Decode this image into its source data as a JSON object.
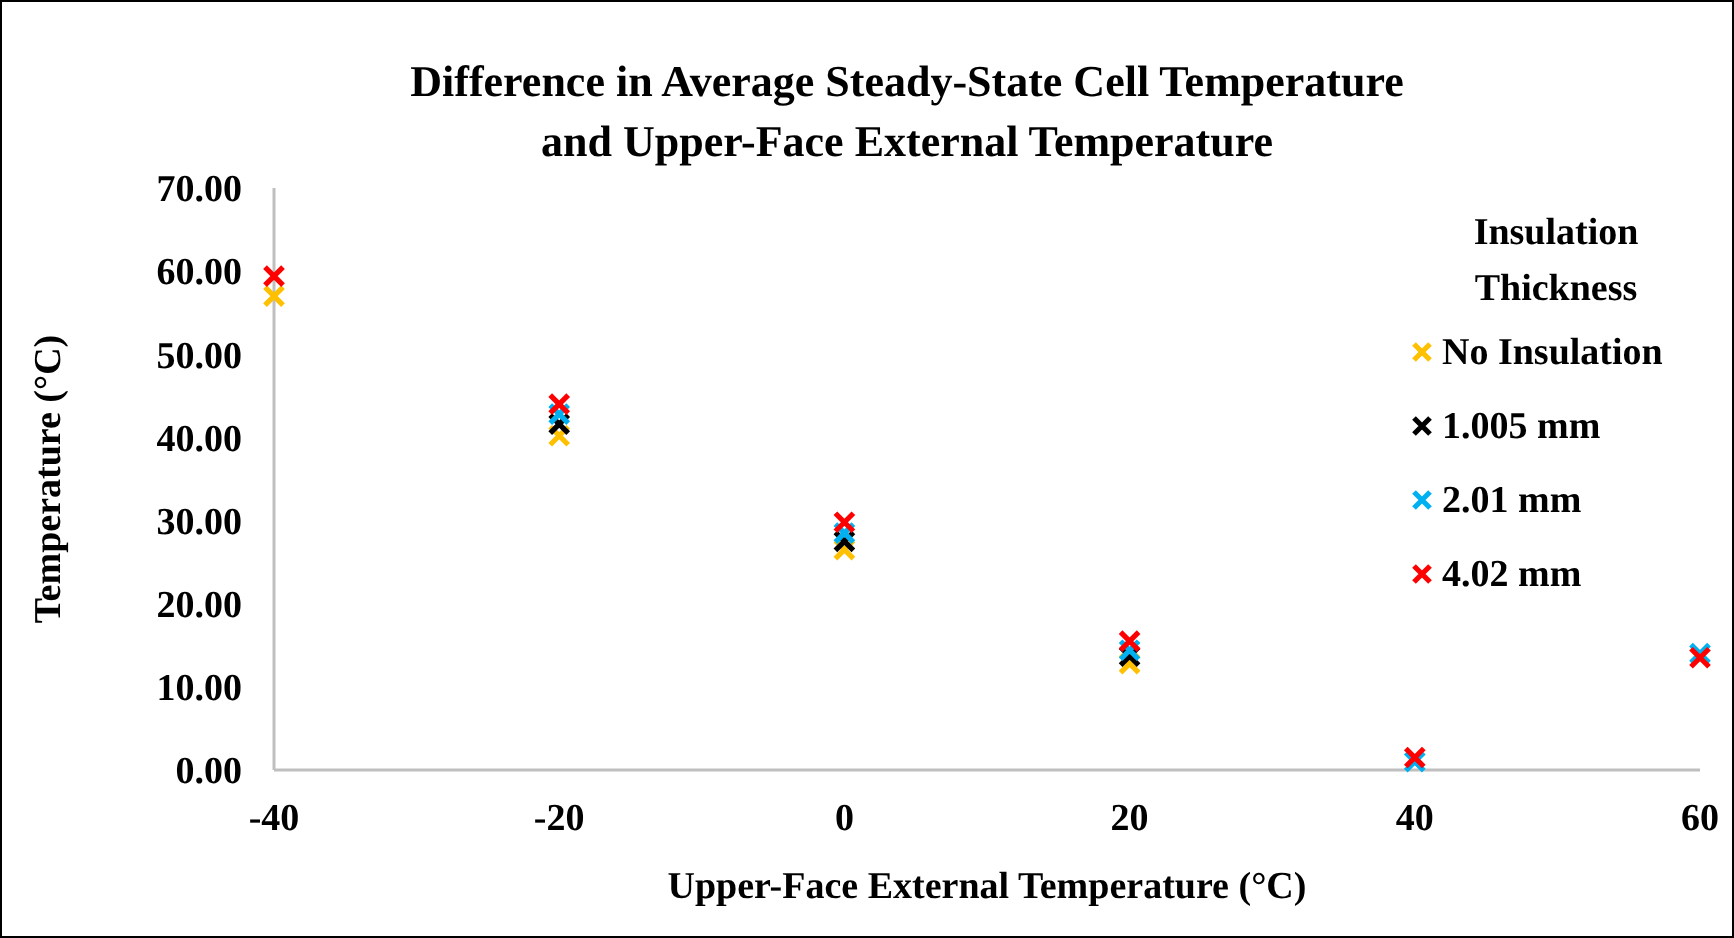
{
  "chart_data": {
    "type": "scatter",
    "title": "Difference in Average Steady-State  Cell Temperature and Upper-Face External Temperature",
    "xlabel": "Upper-Face External Temperature  (°C)",
    "ylabel": "Temperature  (°C)",
    "legend_title": "Insulation Thickness",
    "x": [
      -40,
      -20,
      0,
      20,
      40,
      60
    ],
    "series": [
      {
        "name": "No Insulation",
        "color": "#ffc000",
        "values": [
          57.0,
          40.2,
          26.5,
          12.8,
          null,
          null
        ]
      },
      {
        "name": "1.005 mm",
        "color": "#000000",
        "values": [
          null,
          41.6,
          27.5,
          13.7,
          null,
          null
        ]
      },
      {
        "name": "2.01 mm",
        "color": "#00b0f0",
        "values": [
          null,
          42.8,
          28.5,
          14.4,
          1.0,
          14.0
        ]
      },
      {
        "name": "4.02 mm",
        "color": "#ff0000",
        "values": [
          59.4,
          44.0,
          29.8,
          15.5,
          1.5,
          13.5
        ]
      }
    ],
    "xlim": [
      -40,
      60
    ],
    "xticks": [
      -40,
      -20,
      0,
      20,
      40,
      60
    ],
    "ylim": [
      0,
      70
    ],
    "yticks": [
      {
        "value": 0,
        "label": "0.00"
      },
      {
        "value": 10,
        "label": "10.00"
      },
      {
        "value": 20,
        "label": "20.00"
      },
      {
        "value": 30,
        "label": "30.00"
      },
      {
        "value": 40,
        "label": "40.00"
      },
      {
        "value": 50,
        "label": "50.00"
      },
      {
        "value": 60,
        "label": "60.00"
      },
      {
        "value": 70,
        "label": "70.00"
      }
    ],
    "grid": false,
    "legend": "top right",
    "marker": "cross"
  }
}
